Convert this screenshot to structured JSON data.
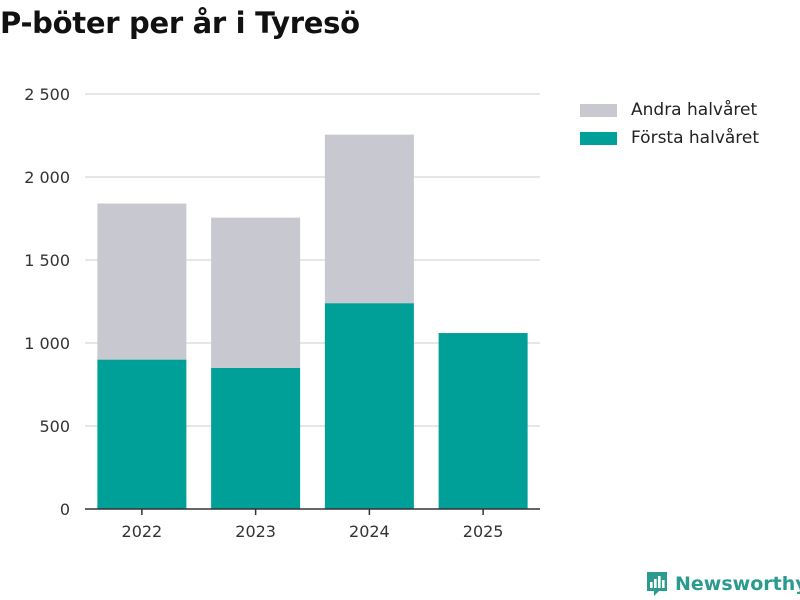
{
  "title": "P-böter per år i Tyresö",
  "brand": {
    "name": "Newsworthy",
    "icon": "bar-chart-speech-bubble-icon"
  },
  "colors": {
    "first_half": "#00a099",
    "second_half": "#c8c8d0",
    "grid": "#dddddd",
    "axis": "#333333",
    "brand": "#2b9b8f"
  },
  "chart_data": {
    "type": "bar",
    "stacked": true,
    "categories": [
      "2022",
      "2023",
      "2024",
      "2025"
    ],
    "series": [
      {
        "name": "Första halvåret",
        "values": [
          900,
          850,
          1240,
          1060
        ]
      },
      {
        "name": "Andra halvåret",
        "values": [
          940,
          905,
          1015,
          null
        ]
      }
    ],
    "ylim": [
      0,
      2500
    ],
    "yticks": [
      0,
      500,
      1000,
      1500,
      2000,
      2500
    ],
    "ytick_labels": [
      "0",
      "500",
      "1 000",
      "1 500",
      "2 000",
      "2 500"
    ],
    "grid": true,
    "legend_placement": "top-right",
    "legend": [
      "Andra halvåret",
      "Första halvåret"
    ],
    "xlabel": "",
    "ylabel": ""
  }
}
